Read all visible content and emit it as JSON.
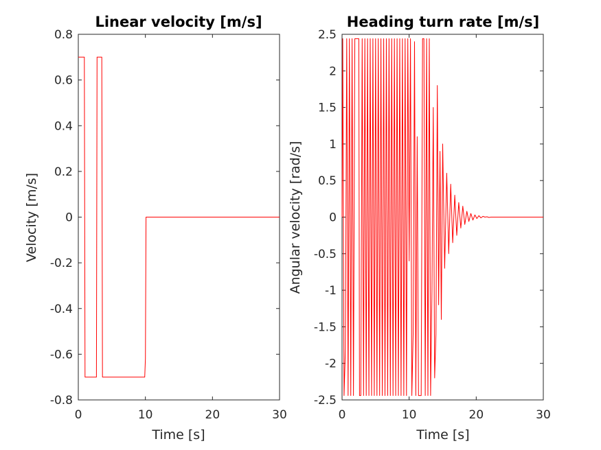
{
  "chart_data": [
    {
      "type": "line",
      "title": "Linear velocity [m/s]",
      "xlabel": "Time [s]",
      "ylabel": "Velocity [m/s]",
      "xlim": [
        0,
        30
      ],
      "ylim": [
        -0.8,
        0.8
      ],
      "xticks": [
        0,
        10,
        20,
        30
      ],
      "yticks": [
        -0.8,
        -0.6,
        -0.4,
        -0.2,
        0,
        0.2,
        0.4,
        0.6,
        0.8
      ],
      "ytick_labels": [
        "-0.8",
        "-0.6",
        "-0.4",
        "-0.2",
        "0",
        "0.2",
        "0.4",
        "0.6",
        "0.8"
      ],
      "grid": false,
      "color": "#ff0000",
      "series": [
        {
          "x": [
            0,
            0.05,
            0.9,
            1.0,
            2.7,
            2.8,
            3.5,
            3.6,
            9.9,
            10.0,
            10.1,
            30
          ],
          "y": [
            0.7,
            0.7,
            0.7,
            -0.7,
            -0.7,
            0.7,
            0.7,
            -0.7,
            -0.7,
            -0.62,
            0,
            0
          ]
        }
      ]
    },
    {
      "type": "line",
      "title": "Heading turn rate [m/s]",
      "xlabel": "Time [s]",
      "ylabel": "Angular velocity [rad/s]",
      "xlim": [
        0,
        30
      ],
      "ylim": [
        -2.5,
        2.5
      ],
      "xticks": [
        0,
        10,
        20,
        30
      ],
      "yticks": [
        -2.5,
        -2,
        -1.5,
        -1,
        -0.5,
        0,
        0.5,
        1,
        1.5,
        2,
        2.5
      ],
      "ytick_labels": [
        "-2.5",
        "-2",
        "-1.5",
        "-1",
        "-0.5",
        "0",
        "0.5",
        "1",
        "1.5",
        "2",
        "2.5"
      ],
      "grid": false,
      "color": "#ff0000",
      "series": [
        {
          "x": [
            0,
            0.1,
            0.3,
            0.5,
            0.7,
            0.9,
            1.1,
            1.3,
            1.5,
            1.7,
            1.9,
            2.0,
            2.2,
            2.5,
            2.6,
            2.8,
            3.0,
            3.2,
            3.4,
            3.6,
            3.8,
            4.0,
            4.2,
            4.4,
            4.6,
            4.8,
            5.0,
            5.2,
            5.4,
            5.6,
            5.8,
            6.0,
            6.2,
            6.4,
            6.6,
            6.8,
            7.0,
            7.2,
            7.4,
            7.6,
            7.8,
            8.0,
            8.2,
            8.4,
            8.6,
            8.8,
            9.0,
            9.2,
            9.4,
            9.6,
            9.8,
            10.0,
            10.2,
            10.4,
            10.6,
            10.8,
            11.0,
            11.2,
            11.4,
            11.6,
            11.8,
            12.0,
            12.2,
            12.4,
            12.6,
            12.8,
            13.0,
            13.2,
            13.4,
            13.6,
            13.8,
            14.0,
            14.2,
            14.4,
            14.6,
            14.8,
            15.0,
            15.3,
            15.6,
            15.9,
            16.2,
            16.5,
            16.8,
            17.1,
            17.4,
            17.7,
            18.0,
            18.3,
            18.6,
            18.9,
            19.2,
            19.5,
            19.8,
            20.1,
            20.4,
            20.7,
            21.0,
            21.3,
            21.6,
            21.9,
            22.2,
            22.5,
            22.8,
            23.1,
            23.4,
            23.7,
            24.0,
            24.3,
            24.6,
            24.9,
            25.2,
            25.6,
            26.0,
            26.5,
            27.0,
            30
          ],
          "y": [
            0,
            2.44,
            -2.44,
            -1.8,
            2.44,
            -2.44,
            2.44,
            -2.44,
            2.44,
            -2.44,
            2.44,
            2.44,
            2.44,
            2.44,
            -2.44,
            -2.44,
            2.44,
            -2.44,
            2.44,
            -2.44,
            2.44,
            -2.44,
            2.44,
            -2.44,
            2.44,
            -2.44,
            2.44,
            -2.44,
            2.44,
            -2.44,
            2.44,
            -2.44,
            2.44,
            -2.44,
            2.44,
            -2.44,
            2.44,
            -2.44,
            2.44,
            -2.44,
            2.44,
            -2.44,
            2.44,
            -2.44,
            2.44,
            -2.44,
            2.44,
            -2.44,
            2.44,
            -2.44,
            2.44,
            -0.6,
            2.44,
            -2.44,
            -1.6,
            2.4,
            -2.44,
            1.1,
            -2.44,
            -2.44,
            -2.44,
            2.44,
            2.44,
            -2.44,
            2.44,
            -2.44,
            2.44,
            -2.44,
            -1.0,
            1.5,
            -2.2,
            -1.6,
            1.8,
            -1.2,
            0.9,
            -1.4,
            1.0,
            -0.7,
            0.6,
            -0.5,
            0.45,
            -0.35,
            0.3,
            -0.25,
            0.2,
            -0.15,
            0.15,
            -0.1,
            0.08,
            -0.06,
            0.05,
            -0.04,
            0.03,
            -0.02,
            0.02,
            -0.01,
            0.01,
            0.0,
            0.005,
            -0.005,
            0,
            0,
            0,
            0,
            0,
            0,
            0,
            0,
            0,
            0,
            0,
            0,
            0,
            0,
            0,
            0
          ]
        }
      ]
    }
  ]
}
